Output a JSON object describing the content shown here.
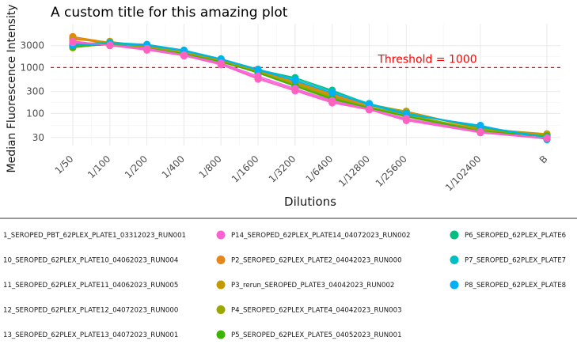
{
  "chart_data": {
    "type": "line",
    "title": "A custom title for this amazing plot",
    "xlabel": "Dilutions",
    "ylabel": "Median Fluorescence Intensity",
    "y_scale": "log10",
    "ylim": [
      20,
      9000
    ],
    "y_ticks": [
      30,
      100,
      300,
      1000,
      3000
    ],
    "grid": true,
    "legend_position": "bottom",
    "categories": [
      "1/50",
      "1/100",
      "1/200",
      "1/400",
      "1/800",
      "1/1600",
      "1/3200",
      "1/6400",
      "1/12800",
      "1/25600",
      "1/102400",
      "B"
    ],
    "dilution_factors": [
      50,
      100,
      200,
      400,
      800,
      1600,
      3200,
      6400,
      12800,
      25600,
      102400,
      102400
    ],
    "threshold": {
      "value": 1000,
      "label": "Threshold = 1000",
      "color": "#ff0000"
    },
    "series": [
      {
        "name": "1_SEROPED_PBT_62PLEX_PLATE1_03312023_RUN001",
        "color": "#f8766d",
        "values": [
          4400,
          3400,
          2650,
          2000,
          1350,
          800,
          450,
          240,
          140,
          88,
          42,
          33
        ]
      },
      {
        "name": "10_SEROPED_62PLEX_PLATE10_04062023_RUN004",
        "color": "#e58700",
        "values": [
          4700,
          3500,
          2700,
          2050,
          1400,
          830,
          470,
          250,
          150,
          105,
          48,
          35
        ]
      },
      {
        "name": "11_SEROPED_62PLEX_PLATE11_04062023_RUN005",
        "color": "#c99800",
        "values": [
          3000,
          3700,
          2900,
          2150,
          1450,
          850,
          480,
          260,
          155,
          110,
          46,
          35
        ]
      },
      {
        "name": "12_SEROPED_62PLEX_PLATE12_04072023_RUN000",
        "color": "#a3a500",
        "values": [
          2700,
          3300,
          2800,
          2100,
          1380,
          790,
          420,
          220,
          135,
          90,
          42,
          33
        ]
      },
      {
        "name": "13_SEROPED_62PLEX_PLATE13_04072023_RUN001",
        "color": "#6bb100",
        "values": [
          2800,
          3200,
          2700,
          2050,
          1350,
          760,
          390,
          200,
          130,
          85,
          40,
          32
        ]
      },
      {
        "name": "P14_SEROPED_62PLEX_PLATE14_04072023_RUN002",
        "color": "#fd61d1",
        "values": [
          3800,
          3000,
          2400,
          1800,
          1150,
          560,
          310,
          170,
          120,
          70,
          38,
          28
        ]
      },
      {
        "name": "P2_SEROPED_62PLEX_PLATE2_04042023_RUN000",
        "color": "#e7861b",
        "values": [
          4300,
          3300,
          2650,
          2000,
          1350,
          820,
          460,
          245,
          150,
          108,
          46,
          34
        ]
      },
      {
        "name": "P3_rerun_SEROPED_PLATE3_04042023_RUN002",
        "color": "#c49a00",
        "values": [
          4100,
          3600,
          2800,
          2100,
          1420,
          860,
          500,
          270,
          160,
          112,
          47,
          36
        ]
      },
      {
        "name": "P4_SEROPED_62PLEX_PLATE4_04042023_RUN003",
        "color": "#99a800",
        "values": [
          3100,
          3250,
          2750,
          2080,
          1370,
          800,
          440,
          230,
          140,
          95,
          44,
          33
        ]
      },
      {
        "name": "P5_SEROPED_62PLEX_PLATE5_04052023_RUN001",
        "color": "#3cb400",
        "values": [
          2900,
          3150,
          2650,
          2000,
          1320,
          780,
          400,
          210,
          132,
          88,
          41,
          32
        ]
      },
      {
        "name": "P6_SEROPED_62PLEX_PLATE6",
        "color": "#00bf7d",
        "values": [
          3200,
          3400,
          3000,
          2300,
          1500,
          900,
          600,
          320,
          160,
          100,
          50,
          30
        ]
      },
      {
        "name": "P7_SEROPED_62PLEX_PLATE7",
        "color": "#00bfc4",
        "values": [
          3300,
          3500,
          3200,
          2400,
          1550,
          920,
          560,
          300,
          165,
          102,
          52,
          31
        ]
      },
      {
        "name": "P8_SEROPED_62PLEX_PLATE8",
        "color": "#00b0f6",
        "values": [
          3000,
          3300,
          3100,
          2300,
          1500,
          880,
          520,
          280,
          155,
          95,
          55,
          27
        ]
      },
      {
        "name": "",
        "color": "#e76bf3",
        "values": [
          3500,
          3100,
          2600,
          1900,
          1250,
          650,
          350,
          190,
          125,
          78,
          40,
          29
        ]
      },
      {
        "name": "",
        "color": "#ff62bc",
        "values": [
          3700,
          3050,
          2500,
          1850,
          1200,
          600,
          330,
          180,
          122,
          74,
          39,
          29
        ]
      }
    ]
  }
}
